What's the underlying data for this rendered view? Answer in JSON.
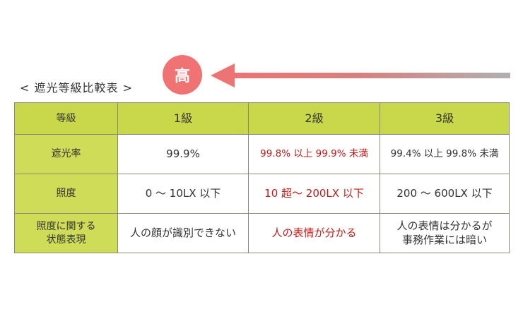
{
  "title": "< 遮光等級比較表 >",
  "badge": "高",
  "colors": {
    "accent": "#f07272",
    "header": "#c8d84a",
    "highlight_text": "#c41a1a"
  },
  "table": {
    "headers": [
      "等級",
      "1級",
      "2級",
      "3級"
    ],
    "rows": [
      {
        "label": "遮光率",
        "cells": [
          "99.9%",
          "99.8% 以上 99.9% 未満",
          "99.4% 以上 99.8% 未満"
        ]
      },
      {
        "label": "照度",
        "cells": [
          "0 ～ 10LX 以下",
          "10 超～ 200LX 以下",
          "200 ～ 600LX 以下"
        ]
      },
      {
        "label_lines": [
          "照度に関する",
          "状態表現"
        ],
        "cells": [
          "人の顔が識別できない",
          "人の表情が分かる"
        ],
        "cell3_lines": [
          "人の表情は分かるが",
          "事務作業には暗い"
        ]
      }
    ]
  }
}
